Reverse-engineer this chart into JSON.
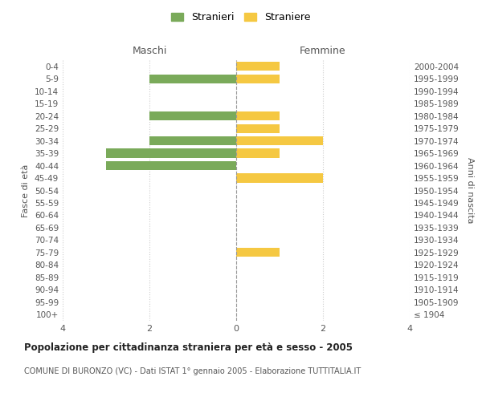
{
  "age_groups": [
    "100+",
    "95-99",
    "90-94",
    "85-89",
    "80-84",
    "75-79",
    "70-74",
    "65-69",
    "60-64",
    "55-59",
    "50-54",
    "45-49",
    "40-44",
    "35-39",
    "30-34",
    "25-29",
    "20-24",
    "15-19",
    "10-14",
    "5-9",
    "0-4"
  ],
  "birth_years": [
    "≤ 1904",
    "1905-1909",
    "1910-1914",
    "1915-1919",
    "1920-1924",
    "1925-1929",
    "1930-1934",
    "1935-1939",
    "1940-1944",
    "1945-1949",
    "1950-1954",
    "1955-1959",
    "1960-1964",
    "1965-1969",
    "1970-1974",
    "1975-1979",
    "1980-1984",
    "1985-1989",
    "1990-1994",
    "1995-1999",
    "2000-2004"
  ],
  "maschi_stranieri": [
    0,
    0,
    0,
    0,
    0,
    0,
    0,
    0,
    0,
    0,
    0,
    0,
    3,
    3,
    2,
    0,
    2,
    0,
    0,
    2,
    0
  ],
  "femmine_straniere": [
    0,
    0,
    0,
    0,
    0,
    1,
    0,
    0,
    0,
    0,
    0,
    2,
    0,
    1,
    2,
    1,
    1,
    0,
    0,
    1,
    1
  ],
  "color_maschi": "#7aaa5a",
  "color_femmine": "#f5c842",
  "title": "Popolazione per cittadinanza straniera per età e sesso - 2005",
  "subtitle": "COMUNE DI BURONZO (VC) - Dati ISTAT 1° gennaio 2005 - Elaborazione TUTTITALIA.IT",
  "xlabel_left": "Maschi",
  "xlabel_right": "Femmine",
  "ylabel_left": "Fasce di età",
  "ylabel_right": "Anni di nascita",
  "legend_maschi": "Stranieri",
  "legend_femmine": "Straniere",
  "xlim": 4,
  "background_color": "#ffffff",
  "grid_color": "#cccccc"
}
